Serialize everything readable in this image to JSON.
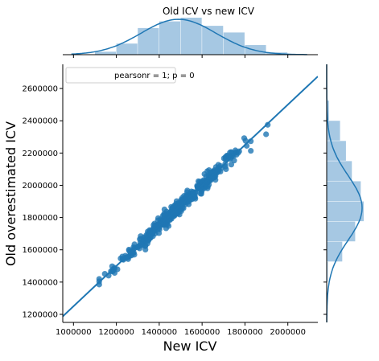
{
  "chart_data": {
    "type": "scatter",
    "title": "Old ICV vs new ICV",
    "xlabel": "New ICV",
    "ylabel": "Old overestimated ICV",
    "xlim": [
      950000,
      2140000
    ],
    "ylim": [
      1150000,
      2750000
    ],
    "x_ticks": [
      1000000,
      1200000,
      1400000,
      1600000,
      1800000,
      2000000
    ],
    "y_ticks": [
      1200000,
      1400000,
      1600000,
      1800000,
      2000000,
      2200000,
      2400000,
      2600000
    ],
    "x_tick_labels": [
      "1000000",
      "1200000",
      "1400000",
      "1600000",
      "1800000",
      "2000000"
    ],
    "y_tick_labels": [
      "1200000",
      "1400000",
      "1600000",
      "1800000",
      "2000000",
      "2200000",
      "2400000",
      "2600000"
    ],
    "legend": {
      "text": "pearsonr = 1; p = 0",
      "position": "top-left"
    },
    "regression_line": {
      "slope": 1.25,
      "intercept": 0
    },
    "point_cloud": {
      "x_range": [
        1120000,
        1980000
      ],
      "x_mean": 1490000,
      "x_sd": 150000,
      "relative_scatter_sd": 0.012,
      "count": 420
    },
    "marginal_x_hist": {
      "bin_edges": [
        1100000,
        1200000,
        1300000,
        1400000,
        1500000,
        1600000,
        1700000,
        1800000,
        1900000,
        2000000
      ],
      "density": [
        0.08,
        0.3,
        0.72,
        0.9,
        1.0,
        0.78,
        0.6,
        0.26,
        0.06
      ]
    },
    "marginal_y_hist": {
      "bin_edges": [
        1400000,
        1525000,
        1650000,
        1775000,
        1900000,
        2025000,
        2150000,
        2275000,
        2400000,
        2525000
      ],
      "density": [
        0.03,
        0.42,
        0.77,
        1.0,
        0.92,
        0.68,
        0.52,
        0.36,
        0.06
      ]
    },
    "colors": {
      "points": "#1f77b4",
      "line": "#1f77b4",
      "hist": "#a6c8e3",
      "kde": "#1f77b4"
    }
  }
}
